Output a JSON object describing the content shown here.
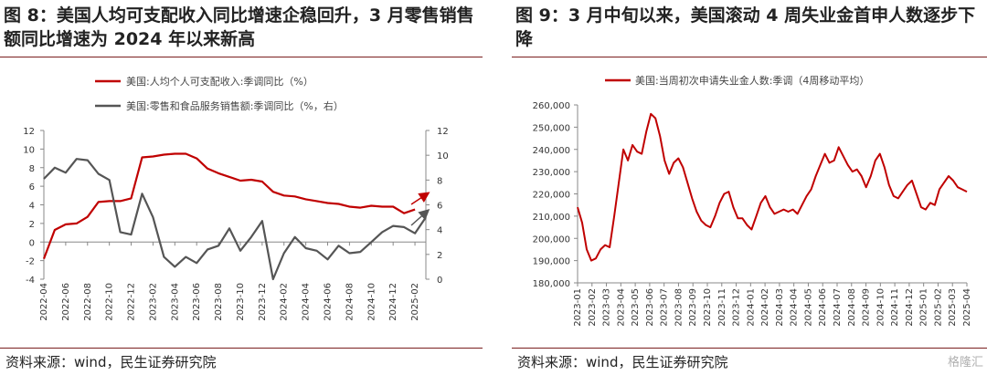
{
  "left": {
    "title": "图 8：美国人均可支配收入同比增速企稳回升，3 月零售销售额同比增速为 2024 年以来新高",
    "source": "资料来源：wind，民生证券研究院"
  },
  "right": {
    "title": "图 9：3 月中旬以来，美国滚动 4 周失业金首申人数逐步下降",
    "source": "资料来源：wind，民生证券研究院"
  },
  "watermark": "格隆汇",
  "colors": {
    "red": "#c00000",
    "gray": "#555555",
    "rule": "#7a1f1f"
  },
  "chart_data": [
    {
      "type": "line",
      "x": [
        "2022-04",
        "2022-05",
        "2022-06",
        "2022-07",
        "2022-08",
        "2022-09",
        "2022-10",
        "2022-11",
        "2022-12",
        "2023-01",
        "2023-02",
        "2023-03",
        "2023-04",
        "2023-05",
        "2023-06",
        "2023-07",
        "2023-08",
        "2023-09",
        "2023-10",
        "2023-11",
        "2023-12",
        "2024-01",
        "2024-02",
        "2024-03",
        "2024-04",
        "2024-05",
        "2024-06",
        "2024-07",
        "2024-08",
        "2024-09",
        "2024-10",
        "2024-11",
        "2024-12",
        "2025-01",
        "2025-02",
        "2025-03"
      ],
      "xticks": [
        "2022-04",
        "2022-06",
        "2022-08",
        "2022-10",
        "2022-12",
        "2023-02",
        "2023-04",
        "2023-06",
        "2023-08",
        "2023-10",
        "2023-12",
        "2024-02",
        "2024-04",
        "2024-06",
        "2024-08",
        "2024-10",
        "2024-12",
        "2025-02"
      ],
      "series": [
        {
          "name": "美国:人均个人可支配收入:季调同比（%）",
          "axis": "left",
          "values": [
            -1.8,
            1.3,
            1.9,
            2.0,
            2.7,
            4.3,
            4.4,
            4.4,
            4.7,
            9.1,
            9.2,
            9.4,
            9.5,
            9.5,
            9.0,
            7.9,
            7.4,
            7.0,
            6.6,
            6.7,
            6.5,
            5.4,
            5.0,
            4.9,
            4.6,
            4.4,
            4.2,
            4.1,
            3.8,
            3.7,
            3.9,
            3.8,
            3.8,
            3.1,
            3.5,
            null
          ]
        },
        {
          "name": "美国:零售和食品服务销售额:季调同比（%，右）",
          "axis": "right",
          "values": [
            8.1,
            9.0,
            8.6,
            9.7,
            9.6,
            8.5,
            8.0,
            3.8,
            3.6,
            6.9,
            5.0,
            1.8,
            1.0,
            1.8,
            1.3,
            2.4,
            2.7,
            4.1,
            2.3,
            3.4,
            4.7,
            0.0,
            2.1,
            3.4,
            2.5,
            2.3,
            1.6,
            2.7,
            2.1,
            2.2,
            3.0,
            3.8,
            4.3,
            4.2,
            3.7,
            5.0
          ]
        }
      ],
      "left_axis": {
        "ylim": [
          -4,
          12
        ],
        "ticks": [
          -4,
          -2,
          0,
          2,
          4,
          6,
          8,
          10,
          12
        ]
      },
      "right_axis": {
        "ylim": [
          0,
          12
        ],
        "ticks": [
          0,
          2,
          4,
          6,
          8,
          10,
          12
        ]
      },
      "legend": "top-left",
      "grid": false
    },
    {
      "type": "line",
      "x_start": "2023-01",
      "xticks": [
        "2023-01",
        "2023-02",
        "2023-03",
        "2023-04",
        "2023-05",
        "2023-06",
        "2023-07",
        "2023-08",
        "2023-09",
        "2023-10",
        "2023-11",
        "2023-12",
        "2024-01",
        "2024-02",
        "2024-03",
        "2024-04",
        "2024-05",
        "2024-06",
        "2024-07",
        "2024-08",
        "2024-09",
        "2024-10",
        "2024-11",
        "2024-12",
        "2025-01",
        "2025-02",
        "2025-03",
        "2025-04"
      ],
      "series": [
        {
          "name": "美国:当周初次申请失业金人数:季调（4周移动平均）",
          "values": [
            214000,
            207000,
            195000,
            190000,
            191000,
            195000,
            197000,
            196000,
            210000,
            225000,
            240000,
            235000,
            242000,
            239000,
            238000,
            248000,
            256000,
            254000,
            246000,
            235000,
            229000,
            234000,
            236000,
            232000,
            225000,
            218000,
            212000,
            208000,
            206000,
            205000,
            210000,
            216000,
            220000,
            221000,
            214000,
            209000,
            209000,
            206000,
            204000,
            210000,
            216000,
            219000,
            214000,
            211000,
            212000,
            213000,
            212000,
            213000,
            211000,
            215000,
            219000,
            222000,
            228000,
            233000,
            238000,
            234000,
            235000,
            241000,
            237000,
            233000,
            230000,
            231000,
            228000,
            223000,
            228000,
            235000,
            238000,
            232000,
            224000,
            219000,
            218000,
            221000,
            224000,
            226000,
            220000,
            214000,
            213000,
            216000,
            215000,
            222000,
            225000,
            228000,
            226000,
            223000,
            222000,
            221000
          ]
        }
      ],
      "ylim": [
        180000,
        260000
      ],
      "yticks": [
        "180,000",
        "190,000",
        "200,000",
        "210,000",
        "220,000",
        "230,000",
        "240,000",
        "250,000",
        "260,000"
      ],
      "legend": "top",
      "grid": false
    }
  ]
}
